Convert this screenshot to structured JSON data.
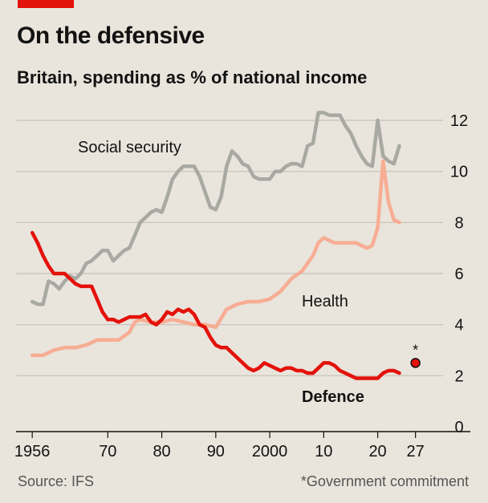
{
  "header": {
    "title": "On the defensive",
    "subtitle": "Britain, spending as % of national income"
  },
  "footer": {
    "source": "Source: IFS",
    "note": "*Government commitment"
  },
  "colors": {
    "background": "#e9e4dc",
    "accent": "#e3120b",
    "social_security": "#a9a9a3",
    "health": "#f7ad94",
    "defence": "#e3120b",
    "grid": "#c8c2b8"
  },
  "chart_data": {
    "type": "line",
    "x_tick_labels": [
      "1956",
      "70",
      "80",
      "90",
      "2000",
      "10",
      "20",
      "27"
    ],
    "x_ticks": [
      1956,
      1970,
      1980,
      1990,
      2000,
      2010,
      2020,
      2027
    ],
    "xlim": [
      1953,
      2033
    ],
    "ylim": [
      0,
      12
    ],
    "y_ticks": [
      0,
      2,
      4,
      6,
      8,
      10,
      12
    ],
    "y_tick_labels": [
      "0",
      "2",
      "4",
      "6",
      "8",
      "10",
      "12"
    ],
    "grid": true,
    "series": [
      {
        "name": "Social security",
        "label_weight": "normal",
        "x": [
          1956,
          1957,
          1958,
          1959,
          1960,
          1961,
          1962,
          1963,
          1964,
          1965,
          1966,
          1967,
          1968,
          1969,
          1970,
          1971,
          1972,
          1973,
          1974,
          1975,
          1976,
          1977,
          1978,
          1979,
          1980,
          1981,
          1982,
          1983,
          1984,
          1985,
          1986,
          1987,
          1988,
          1989,
          1990,
          1991,
          1992,
          1993,
          1994,
          1995,
          1996,
          1997,
          1998,
          1999,
          2000,
          2001,
          2002,
          2003,
          2004,
          2005,
          2006,
          2007,
          2008,
          2009,
          2010,
          2011,
          2012,
          2013,
          2014,
          2015,
          2016,
          2017,
          2018,
          2019,
          2020,
          2021,
          2022,
          2023,
          2024
        ],
        "values": [
          4.9,
          4.8,
          4.8,
          5.7,
          5.6,
          5.4,
          5.7,
          5.9,
          5.8,
          6.0,
          6.4,
          6.5,
          6.7,
          6.9,
          6.9,
          6.5,
          6.7,
          6.9,
          7.0,
          7.5,
          8.0,
          8.2,
          8.4,
          8.5,
          8.4,
          9.0,
          9.7,
          10.0,
          10.2,
          10.2,
          10.2,
          9.8,
          9.2,
          8.6,
          8.5,
          9.0,
          10.2,
          10.8,
          10.6,
          10.3,
          10.2,
          9.8,
          9.7,
          9.7,
          9.7,
          10.0,
          10.0,
          10.2,
          10.3,
          10.3,
          10.2,
          11.0,
          11.1,
          12.3,
          12.3,
          12.2,
          12.2,
          12.2,
          11.8,
          11.5,
          11.0,
          10.6,
          10.3,
          10.2,
          12.0,
          10.6,
          10.4,
          10.3,
          11.0
        ]
      },
      {
        "name": "Health",
        "label_weight": "normal",
        "x": [
          1956,
          1958,
          1960,
          1962,
          1964,
          1966,
          1968,
          1970,
          1972,
          1974,
          1975,
          1976,
          1978,
          1980,
          1982,
          1984,
          1986,
          1988,
          1990,
          1992,
          1994,
          1996,
          1998,
          2000,
          2002,
          2004,
          2006,
          2008,
          2009,
          2010,
          2012,
          2014,
          2016,
          2018,
          2019,
          2020,
          2021,
          2022,
          2023,
          2024
        ],
        "values": [
          2.8,
          2.8,
          3.0,
          3.1,
          3.1,
          3.2,
          3.4,
          3.4,
          3.4,
          3.7,
          4.1,
          4.2,
          4.1,
          4.1,
          4.2,
          4.1,
          4.0,
          4.0,
          3.9,
          4.6,
          4.8,
          4.9,
          4.9,
          5.0,
          5.3,
          5.8,
          6.1,
          6.7,
          7.2,
          7.4,
          7.2,
          7.2,
          7.2,
          7.0,
          7.1,
          7.8,
          10.4,
          8.8,
          8.1,
          8.0
        ]
      },
      {
        "name": "Defence",
        "label_weight": "bold",
        "x": [
          1956,
          1957,
          1958,
          1959,
          1960,
          1961,
          1962,
          1963,
          1964,
          1965,
          1966,
          1967,
          1968,
          1969,
          1970,
          1971,
          1972,
          1973,
          1974,
          1975,
          1976,
          1977,
          1978,
          1979,
          1980,
          1981,
          1982,
          1983,
          1984,
          1985,
          1986,
          1987,
          1988,
          1989,
          1990,
          1991,
          1992,
          1993,
          1994,
          1995,
          1996,
          1997,
          1998,
          1999,
          2000,
          2001,
          2002,
          2003,
          2004,
          2005,
          2006,
          2007,
          2008,
          2009,
          2010,
          2011,
          2012,
          2013,
          2014,
          2015,
          2016,
          2017,
          2018,
          2019,
          2020,
          2021,
          2022,
          2023,
          2024
        ],
        "values": [
          7.6,
          7.2,
          6.7,
          6.3,
          6.0,
          6.0,
          6.0,
          5.8,
          5.6,
          5.5,
          5.5,
          5.5,
          5.0,
          4.5,
          4.2,
          4.2,
          4.1,
          4.2,
          4.3,
          4.3,
          4.3,
          4.4,
          4.1,
          4.0,
          4.2,
          4.5,
          4.4,
          4.6,
          4.5,
          4.6,
          4.4,
          4.0,
          3.9,
          3.5,
          3.2,
          3.1,
          3.1,
          2.9,
          2.7,
          2.5,
          2.3,
          2.2,
          2.3,
          2.5,
          2.4,
          2.3,
          2.2,
          2.3,
          2.3,
          2.2,
          2.2,
          2.1,
          2.1,
          2.3,
          2.5,
          2.5,
          2.4,
          2.2,
          2.1,
          2.0,
          1.9,
          1.9,
          1.9,
          1.9,
          1.9,
          2.1,
          2.2,
          2.2,
          2.1
        ]
      }
    ],
    "commitment_point": {
      "x": 2027,
      "y": 2.5,
      "label": "*"
    }
  }
}
